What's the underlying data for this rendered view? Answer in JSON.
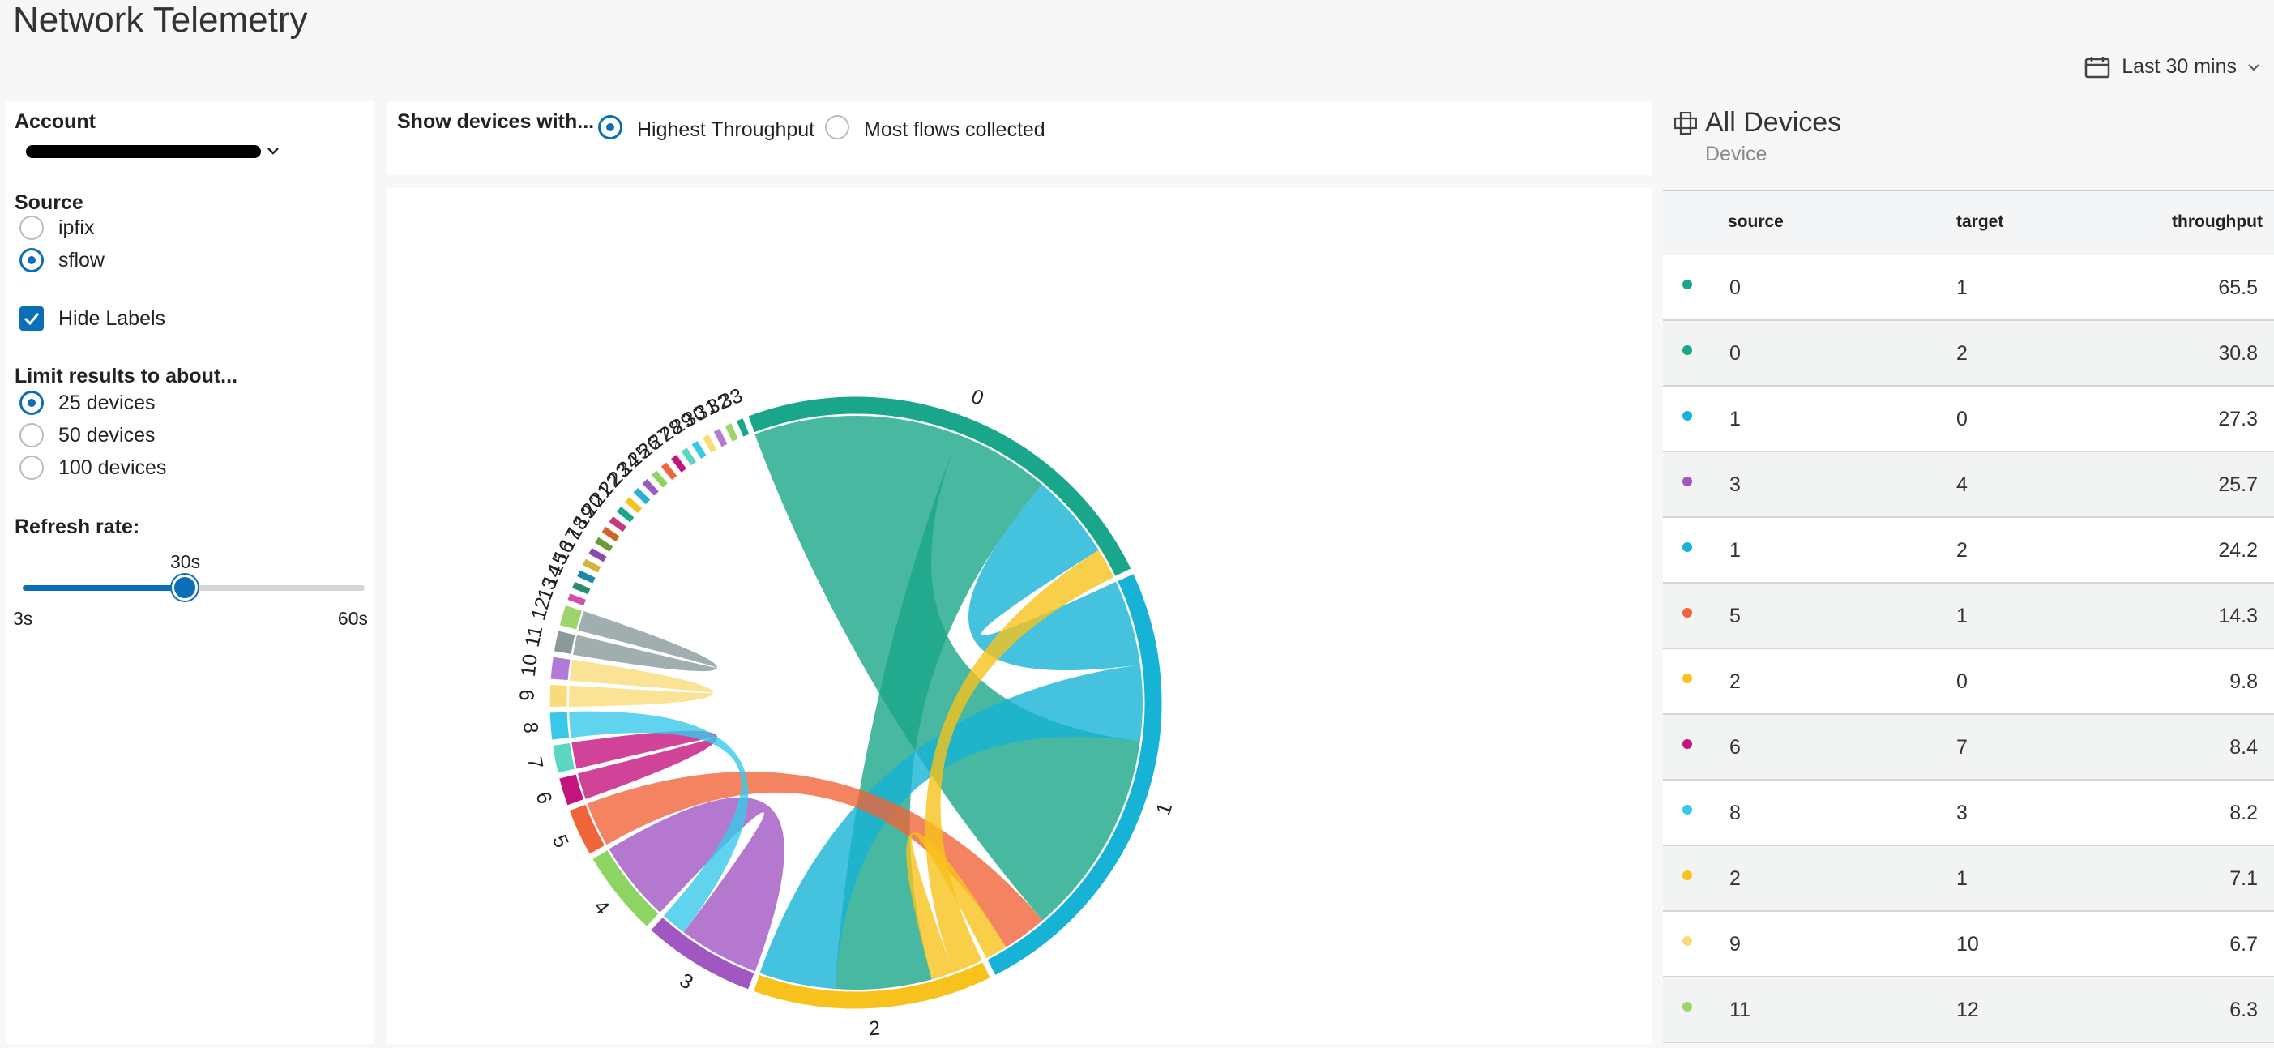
{
  "app": {
    "title": "Network Telemetry"
  },
  "timepicker": {
    "label": "Last 30 mins"
  },
  "filters": {
    "account_label": "Account",
    "source_label": "Source",
    "source_options": [
      "ipfix",
      "sflow"
    ],
    "source_selected": "sflow",
    "hide_labels": "Hide Labels",
    "hide_labels_checked": true,
    "limit_label": "Limit results to about...",
    "limit_options": [
      "25 devices",
      "50 devices",
      "100 devices"
    ],
    "limit_selected": "25 devices",
    "refresh_label": "Refresh rate:",
    "refresh_value": "30s",
    "refresh_min": "3s",
    "refresh_max": "60s",
    "refresh_fraction": 0.474
  },
  "controls": {
    "label": "Show devices with...",
    "options": [
      "Highest Throughput",
      "Most flows collected"
    ],
    "selected": "Highest Throughput"
  },
  "table": {
    "title": "All Devices",
    "subtitle": "Device",
    "columns": [
      "source",
      "target",
      "throughput"
    ],
    "rows": [
      {
        "source": "0",
        "target": "1",
        "throughput": "65.5",
        "color": "#1aa68a"
      },
      {
        "source": "0",
        "target": "2",
        "throughput": "30.8",
        "color": "#1aa68a"
      },
      {
        "source": "1",
        "target": "0",
        "throughput": "27.3",
        "color": "#16b3d6"
      },
      {
        "source": "3",
        "target": "4",
        "throughput": "25.7",
        "color": "#a157c2"
      },
      {
        "source": "1",
        "target": "2",
        "throughput": "24.2",
        "color": "#16b3d6"
      },
      {
        "source": "5",
        "target": "1",
        "throughput": "14.3",
        "color": "#f0643a"
      },
      {
        "source": "2",
        "target": "0",
        "throughput": "9.8",
        "color": "#f7c21b"
      },
      {
        "source": "6",
        "target": "7",
        "throughput": "8.4",
        "color": "#c4147e"
      },
      {
        "source": "8",
        "target": "3",
        "throughput": "8.2",
        "color": "#38c9ea"
      },
      {
        "source": "2",
        "target": "1",
        "throughput": "7.1",
        "color": "#f7c21b"
      },
      {
        "source": "9",
        "target": "10",
        "throughput": "6.7",
        "color": "#f9dc79"
      },
      {
        "source": "11",
        "target": "12",
        "throughput": "6.3",
        "color": "#9ed46c"
      }
    ]
  },
  "chart_data": {
    "type": "chord",
    "nodes": [
      {
        "label": "0",
        "color": "#1aa68a"
      },
      {
        "label": "1",
        "color": "#16b3d6"
      },
      {
        "label": "2",
        "color": "#f7c21b"
      },
      {
        "label": "3",
        "color": "#a157c2"
      },
      {
        "label": "4",
        "color": "#8dd462"
      },
      {
        "label": "5",
        "color": "#f0643a"
      },
      {
        "label": "6",
        "color": "#c4147e"
      },
      {
        "label": "7",
        "color": "#5bd6c0"
      },
      {
        "label": "8",
        "color": "#38c9ea"
      },
      {
        "label": "9",
        "color": "#f9dc79"
      },
      {
        "label": "10",
        "color": "#b07ad6"
      },
      {
        "label": "11",
        "color": "#8a9a9c"
      },
      {
        "label": "12",
        "color": "#9ed46c"
      },
      {
        "label": "13",
        "color": "#d44fa8"
      },
      {
        "label": "14",
        "color": "#2b8a72"
      },
      {
        "label": "15",
        "color": "#1a88a8"
      },
      {
        "label": "16",
        "color": "#d4b23b"
      },
      {
        "label": "17",
        "color": "#8a4ab0"
      },
      {
        "label": "18",
        "color": "#6a9a3a"
      },
      {
        "label": "19",
        "color": "#d0622a"
      },
      {
        "label": "20",
        "color": "#c43a78"
      },
      {
        "label": "21",
        "color": "#1aa68a"
      },
      {
        "label": "22",
        "color": "#f7c21b"
      },
      {
        "label": "23",
        "color": "#2ab0d0"
      },
      {
        "label": "24",
        "color": "#9a5ac0"
      },
      {
        "label": "25",
        "color": "#8dd462"
      },
      {
        "label": "26",
        "color": "#f0643a"
      },
      {
        "label": "27",
        "color": "#c4147e"
      },
      {
        "label": "28",
        "color": "#5bd6c0"
      },
      {
        "label": "29",
        "color": "#38c9ea"
      },
      {
        "label": "30",
        "color": "#f9dc79"
      },
      {
        "label": "31",
        "color": "#b07ad6"
      },
      {
        "label": "32",
        "color": "#9ed46c"
      },
      {
        "label": "33",
        "color": "#1aa68a"
      }
    ],
    "flows": [
      {
        "source": "0",
        "target": "1",
        "value": 65.5
      },
      {
        "source": "0",
        "target": "2",
        "value": 30.8
      },
      {
        "source": "1",
        "target": "0",
        "value": 27.3
      },
      {
        "source": "3",
        "target": "4",
        "value": 25.7
      },
      {
        "source": "1",
        "target": "2",
        "value": 24.2
      },
      {
        "source": "5",
        "target": "1",
        "value": 14.3
      },
      {
        "source": "2",
        "target": "0",
        "value": 9.8
      },
      {
        "source": "6",
        "target": "7",
        "value": 8.4
      },
      {
        "source": "8",
        "target": "3",
        "value": 8.2
      },
      {
        "source": "2",
        "target": "1",
        "value": 7.1
      },
      {
        "source": "9",
        "target": "10",
        "value": 6.7
      },
      {
        "source": "11",
        "target": "12",
        "value": 6.3
      }
    ]
  }
}
